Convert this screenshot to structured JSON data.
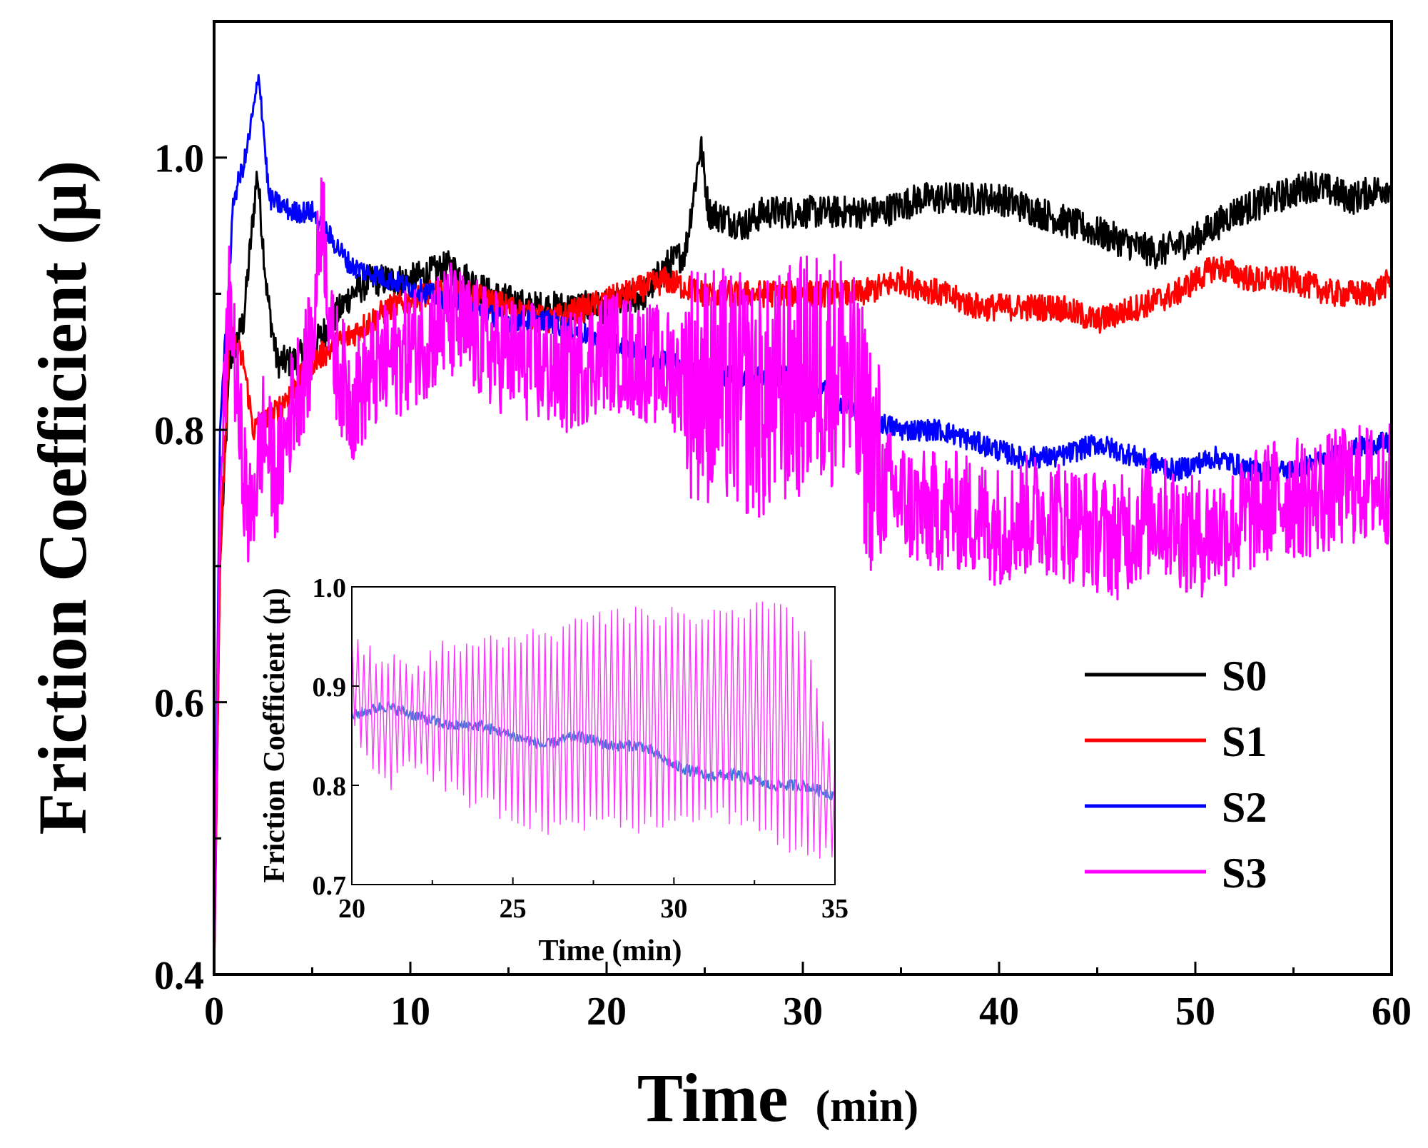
{
  "chart_data": [
    {
      "type": "line",
      "name": "main",
      "xlabel": "Time",
      "xlabel_unit": "(min)",
      "ylabel": "Friction Coefficient (μ)",
      "xlim": [
        0,
        60
      ],
      "ylim": [
        0.4,
        1.1
      ],
      "xticks": [
        0,
        10,
        20,
        30,
        40,
        50,
        60
      ],
      "yticks": [
        0.4,
        0.6,
        0.8,
        1.0
      ],
      "xtick_labels": [
        "0",
        "10",
        "20",
        "30",
        "40",
        "50",
        "60"
      ],
      "ytick_labels": [
        "0.4",
        "0.6",
        "0.8",
        "1.0"
      ],
      "legend_position": "bottom-right",
      "series": [
        {
          "name": "S0",
          "color": "#000000",
          "noise": 0.012,
          "points": [
            [
              0,
              0.4
            ],
            [
              0.3,
              0.7
            ],
            [
              0.8,
              0.85
            ],
            [
              1.5,
              0.88
            ],
            [
              2.2,
              0.99
            ],
            [
              2.7,
              0.9
            ],
            [
              3.2,
              0.85
            ],
            [
              4,
              0.85
            ],
            [
              5,
              0.86
            ],
            [
              6,
              0.88
            ],
            [
              7,
              0.9
            ],
            [
              8,
              0.91
            ],
            [
              10,
              0.91
            ],
            [
              12,
              0.92
            ],
            [
              14,
              0.9
            ],
            [
              16,
              0.89
            ],
            [
              18,
              0.89
            ],
            [
              20,
              0.89
            ],
            [
              22,
              0.9
            ],
            [
              23,
              0.92
            ],
            [
              24,
              0.93
            ],
            [
              24.8,
              1.01
            ],
            [
              25.2,
              0.96
            ],
            [
              27,
              0.95
            ],
            [
              28,
              0.96
            ],
            [
              30,
              0.96
            ],
            [
              32,
              0.96
            ],
            [
              34,
              0.96
            ],
            [
              36,
              0.97
            ],
            [
              38,
              0.97
            ],
            [
              40,
              0.97
            ],
            [
              42,
              0.96
            ],
            [
              44,
              0.95
            ],
            [
              46,
              0.94
            ],
            [
              48,
              0.93
            ],
            [
              50,
              0.94
            ],
            [
              52,
              0.96
            ],
            [
              54,
              0.97
            ],
            [
              56,
              0.98
            ],
            [
              58,
              0.97
            ],
            [
              60,
              0.98
            ]
          ]
        },
        {
          "name": "S1",
          "color": "#ff0000",
          "noise": 0.01,
          "points": [
            [
              0,
              0.4
            ],
            [
              0.3,
              0.7
            ],
            [
              0.8,
              0.87
            ],
            [
              1.5,
              0.85
            ],
            [
              2,
              0.8
            ],
            [
              3,
              0.81
            ],
            [
              4,
              0.83
            ],
            [
              5,
              0.85
            ],
            [
              7,
              0.87
            ],
            [
              9,
              0.89
            ],
            [
              11,
              0.9
            ],
            [
              13,
              0.9
            ],
            [
              15,
              0.89
            ],
            [
              17,
              0.88
            ],
            [
              19,
              0.89
            ],
            [
              21,
              0.9
            ],
            [
              23,
              0.91
            ],
            [
              25,
              0.9
            ],
            [
              27,
              0.9
            ],
            [
              29,
              0.9
            ],
            [
              31,
              0.9
            ],
            [
              33,
              0.9
            ],
            [
              35,
              0.91
            ],
            [
              37,
              0.9
            ],
            [
              39,
              0.89
            ],
            [
              41,
              0.89
            ],
            [
              43,
              0.89
            ],
            [
              45,
              0.88
            ],
            [
              47,
              0.89
            ],
            [
              49,
              0.9
            ],
            [
              51,
              0.92
            ],
            [
              53,
              0.91
            ],
            [
              55,
              0.91
            ],
            [
              57,
              0.9
            ],
            [
              59,
              0.9
            ],
            [
              60,
              0.91
            ]
          ]
        },
        {
          "name": "S2",
          "color": "#0000ff",
          "noise": 0.008,
          "points": [
            [
              0,
              0.4
            ],
            [
              0.3,
              0.8
            ],
            [
              1,
              0.97
            ],
            [
              1.6,
              1.0
            ],
            [
              2.3,
              1.06
            ],
            [
              2.8,
              0.97
            ],
            [
              4,
              0.96
            ],
            [
              5,
              0.96
            ],
            [
              6,
              0.94
            ],
            [
              7,
              0.92
            ],
            [
              9,
              0.91
            ],
            [
              11,
              0.9
            ],
            [
              13,
              0.89
            ],
            [
              15,
              0.88
            ],
            [
              17,
              0.88
            ],
            [
              19,
              0.87
            ],
            [
              21,
              0.86
            ],
            [
              23,
              0.85
            ],
            [
              25,
              0.84
            ],
            [
              27,
              0.84
            ],
            [
              29,
              0.84
            ],
            [
              31,
              0.83
            ],
            [
              33,
              0.81
            ],
            [
              35,
              0.8
            ],
            [
              37,
              0.8
            ],
            [
              39,
              0.79
            ],
            [
              41,
              0.78
            ],
            [
              43,
              0.78
            ],
            [
              45,
              0.79
            ],
            [
              47,
              0.78
            ],
            [
              49,
              0.77
            ],
            [
              51,
              0.78
            ],
            [
              53,
              0.77
            ],
            [
              55,
              0.77
            ],
            [
              57,
              0.78
            ],
            [
              59,
              0.79
            ],
            [
              60,
              0.79
            ]
          ]
        },
        {
          "name": "S3",
          "color": "#ff00ff",
          "noise": 0.045,
          "points": [
            [
              0,
              0.4
            ],
            [
              0.3,
              0.75
            ],
            [
              0.8,
              0.9
            ],
            [
              1.3,
              0.8
            ],
            [
              1.8,
              0.73
            ],
            [
              2.5,
              0.8
            ],
            [
              3.2,
              0.76
            ],
            [
              4,
              0.82
            ],
            [
              5,
              0.86
            ],
            [
              5.5,
              0.97
            ],
            [
              6,
              0.86
            ],
            [
              7,
              0.82
            ],
            [
              8,
              0.84
            ],
            [
              10,
              0.86
            ],
            [
              12,
              0.88
            ],
            [
              14,
              0.86
            ],
            [
              16,
              0.85
            ],
            [
              18,
              0.84
            ],
            [
              20,
              0.86
            ],
            [
              22,
              0.85
            ],
            [
              24,
              0.84
            ],
            [
              26,
              0.83
            ],
            [
              28,
              0.82
            ],
            [
              30,
              0.84
            ],
            [
              32,
              0.85
            ],
            [
              34,
              0.76
            ],
            [
              36,
              0.74
            ],
            [
              38,
              0.74
            ],
            [
              40,
              0.73
            ],
            [
              42,
              0.74
            ],
            [
              44,
              0.73
            ],
            [
              46,
              0.72
            ],
            [
              48,
              0.74
            ],
            [
              50,
              0.72
            ],
            [
              52,
              0.73
            ],
            [
              54,
              0.75
            ],
            [
              56,
              0.75
            ],
            [
              58,
              0.76
            ],
            [
              60,
              0.76
            ]
          ]
        }
      ]
    },
    {
      "type": "line",
      "name": "inset",
      "xlabel": "Time (min)",
      "ylabel": "Friction Coefficient (μ)",
      "xlim": [
        20,
        35
      ],
      "ylim": [
        0.7,
        1.0
      ],
      "xticks": [
        20,
        25,
        30,
        35
      ],
      "yticks": [
        0.7,
        0.8,
        0.9,
        1.0
      ],
      "xtick_labels": [
        "20",
        "25",
        "30",
        "35"
      ],
      "ytick_labels": [
        "0.7",
        "0.8",
        "0.9",
        "1.0"
      ],
      "series": [
        {
          "name": "S2",
          "color": "#3a7bd5",
          "noise": 0.006,
          "points": [
            [
              20,
              0.87
            ],
            [
              21,
              0.88
            ],
            [
              22,
              0.87
            ],
            [
              23,
              0.86
            ],
            [
              24,
              0.86
            ],
            [
              25,
              0.85
            ],
            [
              26,
              0.84
            ],
            [
              27,
              0.85
            ],
            [
              28,
              0.84
            ],
            [
              29,
              0.84
            ],
            [
              30,
              0.82
            ],
            [
              31,
              0.81
            ],
            [
              32,
              0.81
            ],
            [
              33,
              0.8
            ],
            [
              34,
              0.8
            ],
            [
              35,
              0.79
            ]
          ]
        },
        {
          "name": "S3",
          "color": "#ff33ff",
          "noise": 0.0,
          "oscillation": [
            [
              20,
              0.86,
              0.94
            ],
            [
              21,
              0.8,
              0.93
            ],
            [
              22,
              0.82,
              0.92
            ],
            [
              23,
              0.8,
              0.94
            ],
            [
              24,
              0.78,
              0.94
            ],
            [
              25,
              0.77,
              0.95
            ],
            [
              26,
              0.76,
              0.95
            ],
            [
              27,
              0.76,
              0.96
            ],
            [
              28,
              0.77,
              0.97
            ],
            [
              29,
              0.76,
              0.97
            ],
            [
              30,
              0.77,
              0.97
            ],
            [
              31,
              0.77,
              0.97
            ],
            [
              32,
              0.77,
              0.97
            ],
            [
              33,
              0.75,
              0.98
            ],
            [
              34,
              0.73,
              0.96
            ],
            [
              35,
              0.73,
              0.82
            ]
          ]
        }
      ]
    }
  ]
}
